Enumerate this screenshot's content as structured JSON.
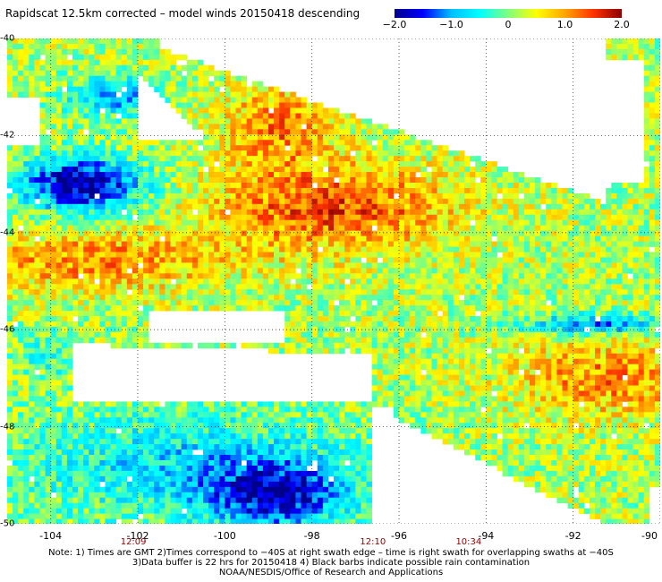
{
  "title": "Rapidscat 12.5km corrected – model winds 20150418 descending",
  "colorbar": {
    "ticks": [
      {
        "label": "−2.0",
        "value": -2.0
      },
      {
        "label": "−1.0",
        "value": -1.0
      },
      {
        "label": "0",
        "value": 0.0
      },
      {
        "label": "1.0",
        "value": 1.0
      },
      {
        "label": "2.0",
        "value": 2.0
      }
    ],
    "range": [
      -2.0,
      2.0
    ],
    "colors": [
      "#00008b",
      "#0000ff",
      "#00bfff",
      "#00ffff",
      "#7fff7f",
      "#ffff00",
      "#ffa500",
      "#ff3300",
      "#8b0000"
    ]
  },
  "map": {
    "lon_range": [
      -105,
      -90
    ],
    "lat_range": [
      -50,
      -40
    ],
    "lat_ticks": [
      "-40",
      "-42",
      "-44",
      "-46",
      "-48",
      "-50"
    ],
    "lon_ticks": [
      "-104",
      "-102",
      "-100",
      "-98",
      "-96",
      "-94",
      "-92",
      "-90"
    ],
    "gridlines": "dotted",
    "time_labels": [
      {
        "label": "12:09",
        "lon": -102.1
      },
      {
        "label": "12:10",
        "lon": -96.6
      },
      {
        "label": "10:34",
        "lon": -94.4
      }
    ]
  },
  "notes": [
    "Note: 1) Times are GMT 2)Times correspond to −40S at right swath edge – time is right swath for overlapping swaths at −40S",
    "3)Data buffer is 22 hrs for 20150418 4) Black barbs indicate possible rain contamination",
    "NOAA/NESDIS/Office of Research and Applications"
  ]
}
